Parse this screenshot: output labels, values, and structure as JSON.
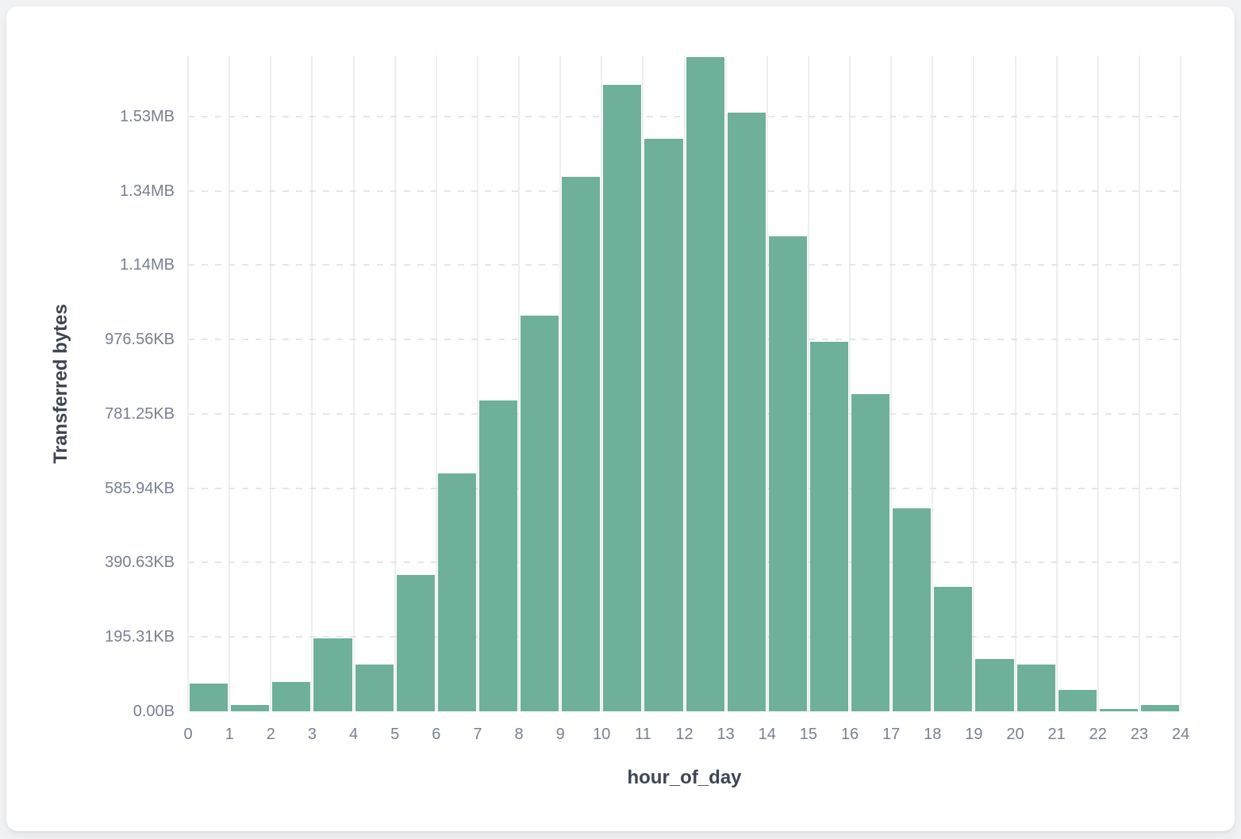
{
  "card": {
    "background": "#ffffff"
  },
  "page": {
    "background": "#f1f2f4"
  },
  "chart_data": {
    "type": "bar",
    "title": "",
    "xlabel": "hour_of_day",
    "ylabel": "Transferred bytes",
    "categories": [
      0,
      1,
      2,
      3,
      4,
      5,
      6,
      7,
      8,
      9,
      10,
      11,
      12,
      13,
      14,
      15,
      16,
      17,
      18,
      19,
      20,
      21,
      22,
      23
    ],
    "values": [
      75000,
      17000,
      78000,
      197000,
      126000,
      367000,
      640000,
      836000,
      1064000,
      1438000,
      1685000,
      1540000,
      1760000,
      1610000,
      1278000,
      994000,
      854000,
      547000,
      335000,
      140000,
      125000,
      58000,
      6000,
      17000
    ],
    "values_unit": "bytes",
    "x_tick_labels": [
      "0",
      "1",
      "2",
      "3",
      "4",
      "5",
      "6",
      "7",
      "8",
      "9",
      "10",
      "11",
      "12",
      "13",
      "14",
      "15",
      "16",
      "17",
      "18",
      "19",
      "20",
      "21",
      "22",
      "23",
      "24"
    ],
    "y_ticks": [
      {
        "value": 0,
        "label": "0.00B"
      },
      {
        "value": 200000,
        "label": "195.31KB"
      },
      {
        "value": 400000,
        "label": "390.63KB"
      },
      {
        "value": 600000,
        "label": "585.94KB"
      },
      {
        "value": 800000,
        "label": "781.25KB"
      },
      {
        "value": 1000000,
        "label": "976.56KB"
      },
      {
        "value": 1200000,
        "label": "1.14MB"
      },
      {
        "value": 1400000,
        "label": "1.34MB"
      },
      {
        "value": 1600000,
        "label": "1.53MB"
      }
    ],
    "xlim": [
      0,
      24
    ],
    "ylim": [
      0,
      1764000
    ],
    "grid": true,
    "legend": false,
    "bar_color": "#6fb09a",
    "vertical_grid_color": "#eceef2",
    "horizontal_grid_color": "#e3e6eb",
    "tick_label_color": "#778090",
    "axis_title_color": "#3d4452"
  }
}
